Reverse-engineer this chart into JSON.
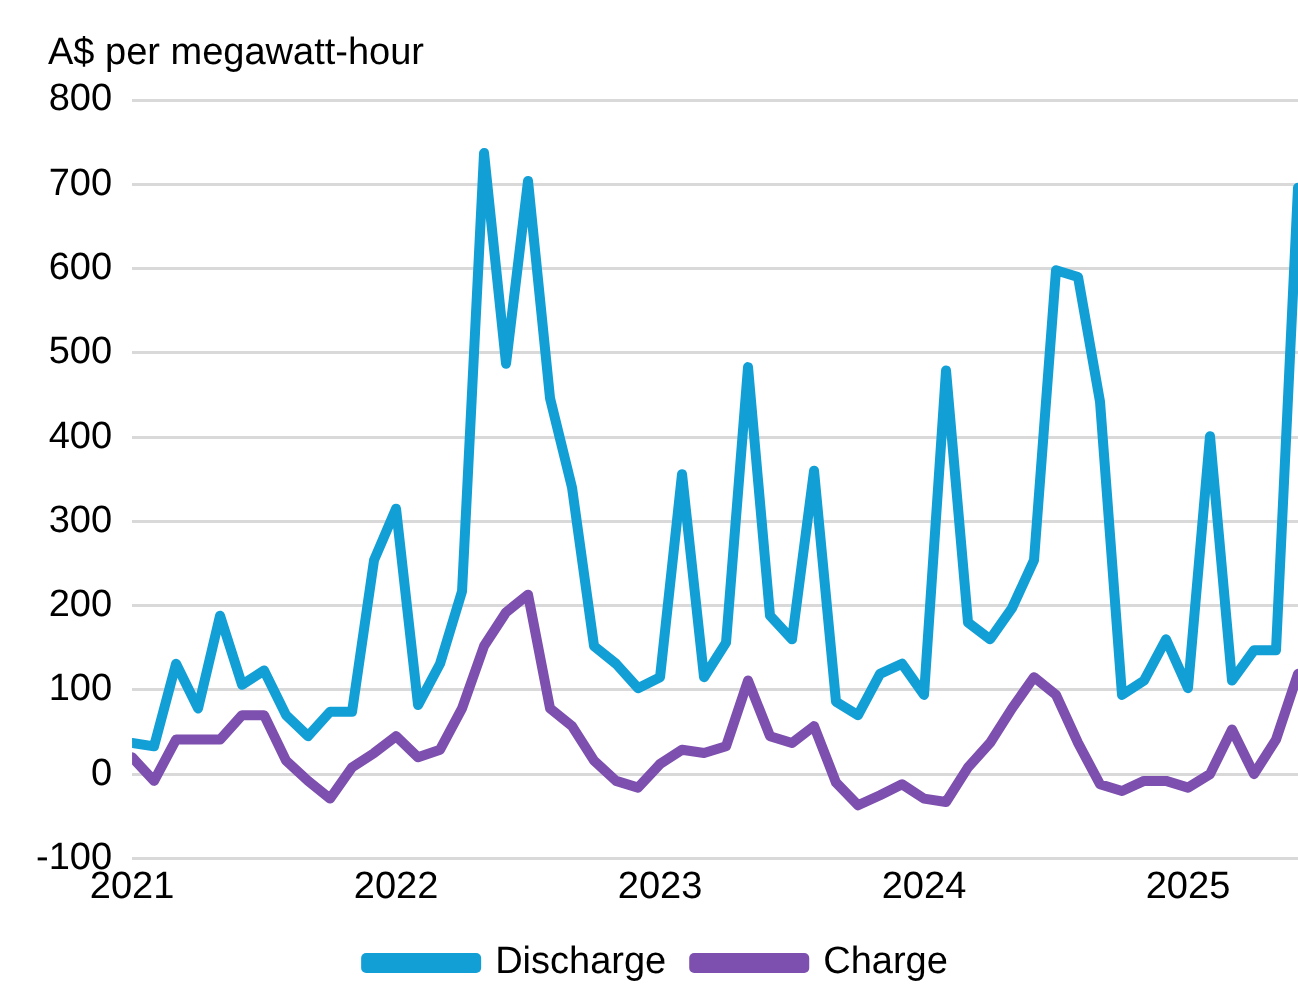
{
  "chart_data": {
    "type": "line",
    "ylabel": "A$ per megawatt-hour",
    "x": [
      "2021-01",
      "2021-02",
      "2021-03",
      "2021-04",
      "2021-05",
      "2021-06",
      "2021-07",
      "2021-08",
      "2021-09",
      "2021-10",
      "2021-11",
      "2021-12",
      "2022-01",
      "2022-02",
      "2022-03",
      "2022-04",
      "2022-05",
      "2022-06",
      "2022-07",
      "2022-08",
      "2022-09",
      "2022-10",
      "2022-11",
      "2022-12",
      "2023-01",
      "2023-02",
      "2023-03",
      "2023-04",
      "2023-05",
      "2023-06",
      "2023-07",
      "2023-08",
      "2023-09",
      "2023-10",
      "2023-11",
      "2023-12",
      "2024-01",
      "2024-02",
      "2024-03",
      "2024-04",
      "2024-05",
      "2024-06",
      "2024-07",
      "2024-08",
      "2024-09",
      "2024-10",
      "2024-11",
      "2024-12",
      "2025-01",
      "2025-02",
      "2025-03",
      "2025-04",
      "2025-05",
      "2025-06"
    ],
    "series": [
      {
        "name": "Discharge",
        "color": "#129fd6",
        "values": [
          37,
          33,
          131,
          78,
          188,
          106,
          123,
          70,
          45,
          74,
          74,
          254,
          315,
          82,
          131,
          217,
          737,
          487,
          704,
          446,
          340,
          152,
          131,
          102,
          115,
          356,
          115,
          156,
          483,
          188,
          160,
          360,
          86,
          70,
          119,
          131,
          94,
          479,
          180,
          160,
          197,
          254,
          598,
          590,
          442,
          94,
          111,
          160,
          102,
          401,
          111,
          147,
          147,
          696
        ]
      },
      {
        "name": "Charge",
        "color": "#7d4fae",
        "values": [
          20,
          -8,
          41,
          41,
          41,
          70,
          70,
          16,
          -8,
          -29,
          8,
          25,
          45,
          20,
          29,
          78,
          152,
          192,
          213,
          78,
          57,
          16,
          -8,
          -16,
          12,
          29,
          25,
          33,
          111,
          45,
          37,
          57,
          -10,
          -37,
          -25,
          -12,
          -29,
          -33,
          8,
          37,
          78,
          115,
          94,
          37,
          -12,
          -20,
          -8,
          -8,
          -16,
          0,
          53,
          0,
          41,
          119
        ]
      }
    ],
    "xlim": [
      "2021-01",
      "2025-06"
    ],
    "xticks": [
      "2021",
      "2022",
      "2023",
      "2024",
      "2025"
    ],
    "ylim": [
      -100,
      800
    ],
    "yticks": [
      -100,
      0,
      100,
      200,
      300,
      400,
      500,
      600,
      700,
      800
    ],
    "grid": "y",
    "legend": "bottom",
    "marker": "none",
    "line_style": "solid"
  }
}
